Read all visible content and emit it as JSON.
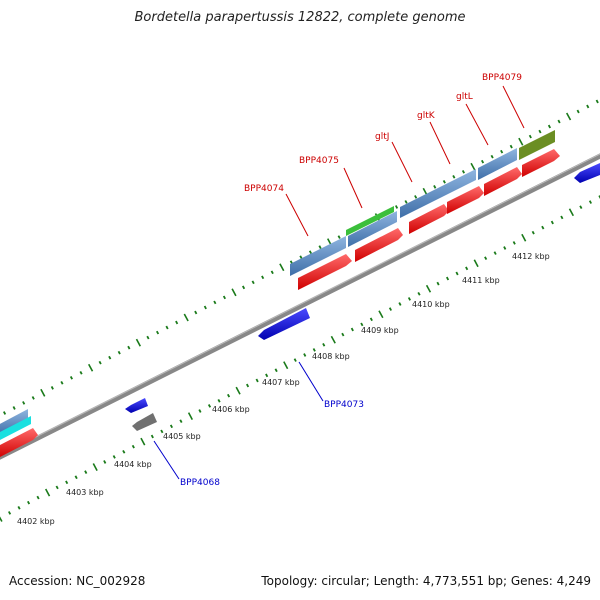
{
  "title": "Bordetella parapertussis 12822, complete genome",
  "accession": "Accession: NC_002928",
  "stats": "Topology: circular; Length: 4,773,551 bp; Genes: 4,249",
  "colors": {
    "forward_cds": "#4f86c6",
    "forward_feature": "#ff1010",
    "reverse_cds": "#1414e6",
    "reverse_gray": "#707070",
    "green_a": "#3bbf3b",
    "olive": "#6b8e23",
    "cyan": "#19e0e0",
    "tick_green": "#1a7a1a",
    "backbone": "#888888",
    "red_label": "#cc0000",
    "blue_label": "#0000cc"
  },
  "ticks": [
    {
      "label": "4402 kbp"
    },
    {
      "label": "4403 kbp"
    },
    {
      "label": "4404 kbp"
    },
    {
      "label": "4405 kbp"
    },
    {
      "label": "4406 kbp"
    },
    {
      "label": "4407 kbp"
    },
    {
      "label": "4408 kbp"
    },
    {
      "label": "4409 kbp"
    },
    {
      "label": "4410 kbp"
    },
    {
      "label": "4411 kbp"
    },
    {
      "label": "4412 kbp"
    }
  ],
  "gene_labels_forward": [
    {
      "label": "BPP4074"
    },
    {
      "label": "BPP4075"
    },
    {
      "label": "gltJ"
    },
    {
      "label": "gltK"
    },
    {
      "label": "gltL"
    },
    {
      "label": "BPP4079"
    }
  ],
  "gene_labels_reverse": [
    {
      "label": "BPP4068"
    },
    {
      "label": "BPP4073"
    }
  ]
}
